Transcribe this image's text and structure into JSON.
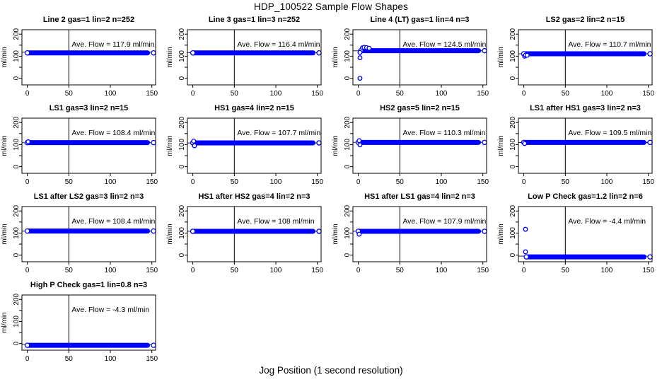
{
  "page": {
    "title": "HDP_100522  Sample Flow Shapes",
    "xlabel": "Jog Position (1 second resolution)"
  },
  "chart_data": {
    "type": "scatter",
    "layout": {
      "rows": 4,
      "cols": 4,
      "used_panels": 13,
      "grid": "off",
      "legend": "none"
    },
    "xlim": [
      -6.5,
      154.5
    ],
    "ylim": [
      -30,
      220
    ],
    "x_ticks": [
      0,
      50,
      100,
      150
    ],
    "y_ticks": [
      0,
      50,
      100,
      150,
      200
    ],
    "y_labeled_ticks": [
      0,
      100,
      200
    ],
    "ylabel": "ml/min",
    "vline_x": 50,
    "point_color": "#0000ff",
    "axis_color": "#000000",
    "panels": [
      {
        "title": "Line 2 gas=1 lin=2 n=252",
        "ave_flow": 117.9,
        "annotation": "Ave. Flow =  117.9  ml/min",
        "band": {
          "x_start": 0,
          "x_end": 152,
          "y": 115
        },
        "outliers": []
      },
      {
        "title": "Line 3 gas=1 lin=3 n=252",
        "ave_flow": 116.4,
        "annotation": "Ave. Flow =  116.4  ml/min",
        "band": {
          "x_start": 0,
          "x_end": 152,
          "y": 115
        },
        "outliers": []
      },
      {
        "title": "Line 4 (LT) gas=1 lin=4 n=3",
        "ave_flow": 124.5,
        "annotation": "Ave. Flow =  124.5  ml/min",
        "band": {
          "x_start": 3,
          "x_end": 152,
          "y": 125
        },
        "outliers": [
          [
            2,
            0
          ],
          [
            2,
            93
          ],
          [
            2,
            117
          ],
          [
            5,
            138
          ],
          [
            7,
            140
          ],
          [
            10,
            139
          ],
          [
            13,
            136
          ]
        ]
      },
      {
        "title": "LS2 gas=2 lin=2 n=15",
        "ave_flow": 110.7,
        "annotation": "Ave. Flow =  110.7  ml/min",
        "band": {
          "x_start": 0,
          "x_end": 152,
          "y": 111
        },
        "outliers": [
          [
            1,
            100
          ],
          [
            2,
            105
          ],
          [
            4,
            104
          ]
        ]
      },
      {
        "title": "LS1 gas=3 lin=2 n=15",
        "ave_flow": 108.4,
        "annotation": "Ave. Flow =  108.4  ml/min",
        "band": {
          "x_start": 0,
          "x_end": 152,
          "y": 109
        },
        "outliers": [
          [
            1,
            113
          ]
        ]
      },
      {
        "title": "HS1 gas=4 lin=2 n=15",
        "ave_flow": 107.7,
        "annotation": "Ave. Flow =  107.7  ml/min",
        "band": {
          "x_start": 0,
          "x_end": 152,
          "y": 108
        },
        "outliers": [
          [
            1,
            116
          ],
          [
            2,
            95
          ]
        ]
      },
      {
        "title": "HS2 gas=5 lin=2 n=15",
        "ave_flow": 110.3,
        "annotation": "Ave. Flow =  110.3  ml/min",
        "band": {
          "x_start": 0,
          "x_end": 152,
          "y": 110
        },
        "outliers": [
          [
            1,
            118
          ],
          [
            2,
            99
          ]
        ]
      },
      {
        "title": "LS1 after HS1 gas=3 lin=2 n=3",
        "ave_flow": 109.5,
        "annotation": "Ave. Flow =  109.5  ml/min",
        "band": {
          "x_start": 0,
          "x_end": 152,
          "y": 110
        },
        "outliers": [
          [
            1,
            105
          ]
        ]
      },
      {
        "title": "LS1 after LS2 gas=3 lin=2 n=3",
        "ave_flow": 108.4,
        "annotation": "Ave. Flow =  108.4  ml/min",
        "band": {
          "x_start": 0,
          "x_end": 152,
          "y": 109
        },
        "outliers": []
      },
      {
        "title": "HS1 after HS2 gas=4 lin=2 n=3",
        "ave_flow": 108,
        "annotation": "Ave. Flow =  108  ml/min",
        "band": {
          "x_start": 0,
          "x_end": 152,
          "y": 108
        },
        "outliers": []
      },
      {
        "title": "HS1 after LS1 gas=4 lin=2 n=3",
        "ave_flow": 107.9,
        "annotation": "Ave. Flow =  107.9  ml/min",
        "band": {
          "x_start": 0,
          "x_end": 152,
          "y": 108
        },
        "outliers": [
          [
            1,
            95
          ]
        ]
      },
      {
        "title": "Low P Check gas=1.2 lin=2 n=6",
        "ave_flow": -4.4,
        "annotation": "Ave. Flow =  -4.4  ml/min",
        "band": {
          "x_start": 3,
          "x_end": 152,
          "y": -8
        },
        "outliers": [
          [
            2,
            117
          ],
          [
            2,
            15
          ]
        ]
      },
      {
        "title": "High P Check gas=1 lin=0.8 n=3",
        "ave_flow": -4.3,
        "annotation": "Ave. Flow =  -4.3  ml/min",
        "band": {
          "x_start": 0,
          "x_end": 152,
          "y": -8
        },
        "outliers": []
      }
    ]
  }
}
